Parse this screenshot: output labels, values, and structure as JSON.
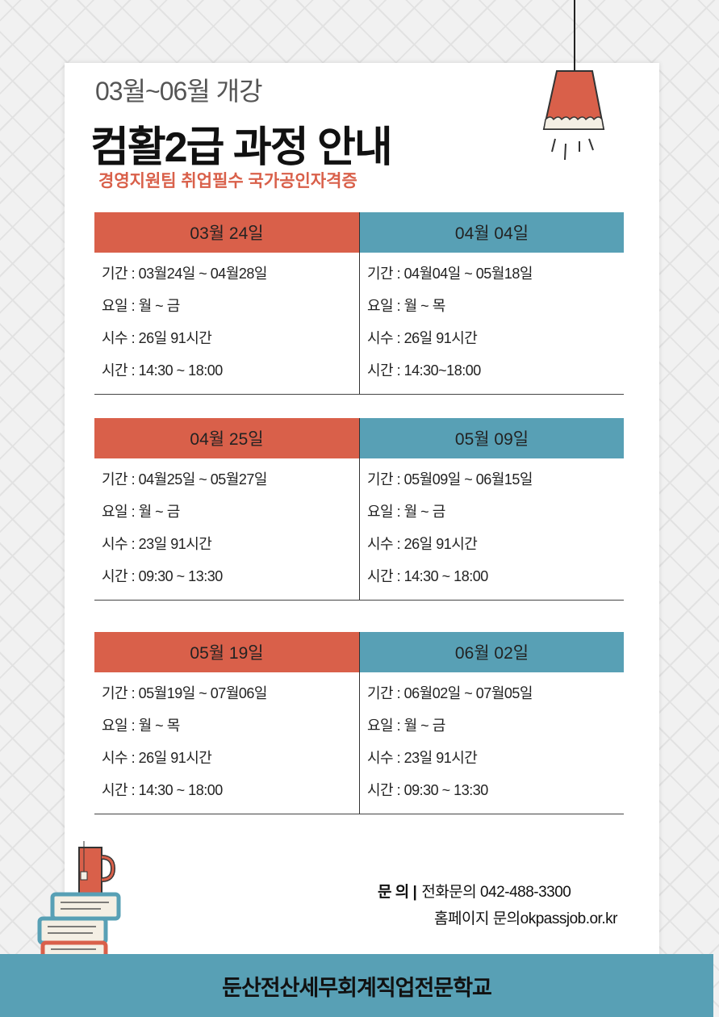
{
  "header": {
    "subtitle": "03월~06월 개강",
    "title": "컴활2급 과정 안내",
    "tagline": "경영지원팀 취업필수 국가공인자격증"
  },
  "colors": {
    "accent_red": "#d9604a",
    "accent_teal": "#58a0b5"
  },
  "courses": [
    {
      "date": "03월 24일",
      "rows": [
        "기간 :  03월24일 ~ 04월28일",
        "요일 :  월 ~ 금",
        "시수 :  26일 91시간",
        "시간 :  14:30 ~ 18:00"
      ]
    },
    {
      "date": "04월 04일",
      "rows": [
        "기간 :  04월04일 ~ 05월18일",
        "요일 :  월 ~ 목",
        "시수 :  26일 91시간",
        "시간 :  14:30~18:00"
      ]
    },
    {
      "date": "04월 25일",
      "rows": [
        "기간 :  04월25일 ~ 05월27일",
        "요일 :  월 ~ 금",
        "시수 :  23일 91시간",
        "시간 :  09:30 ~ 13:30"
      ]
    },
    {
      "date": "05월 09일",
      "rows": [
        "기간 :  05월09일 ~ 06월15일",
        "요일 :  월 ~ 금",
        "시수 :  26일 91시간",
        "시간 :  14:30 ~ 18:00"
      ]
    },
    {
      "date": "05월 19일",
      "rows": [
        "기간 :  05월19일 ~ 07월06일",
        "요일 :  월 ~ 목",
        "시수 :  26일 91시간",
        "시간 :  14:30 ~ 18:00"
      ]
    },
    {
      "date": "06월 02일",
      "rows": [
        "기간 :  06월02일 ~ 07월05일",
        "요일 :  월 ~ 금",
        "시수 :  23일 91시간",
        "시간 : 09:30 ~ 13:30"
      ]
    }
  ],
  "contact": {
    "label": "문  의 |",
    "phone": "전화문의 042-488-3300",
    "web": "홈페이지 문의okpassjob.or.kr"
  },
  "footer": {
    "school": "둔산전산세무회계직업전문학교"
  },
  "icons": {
    "lamp": "pendant-lamp-icon",
    "books": "books-with-mug-icon"
  }
}
